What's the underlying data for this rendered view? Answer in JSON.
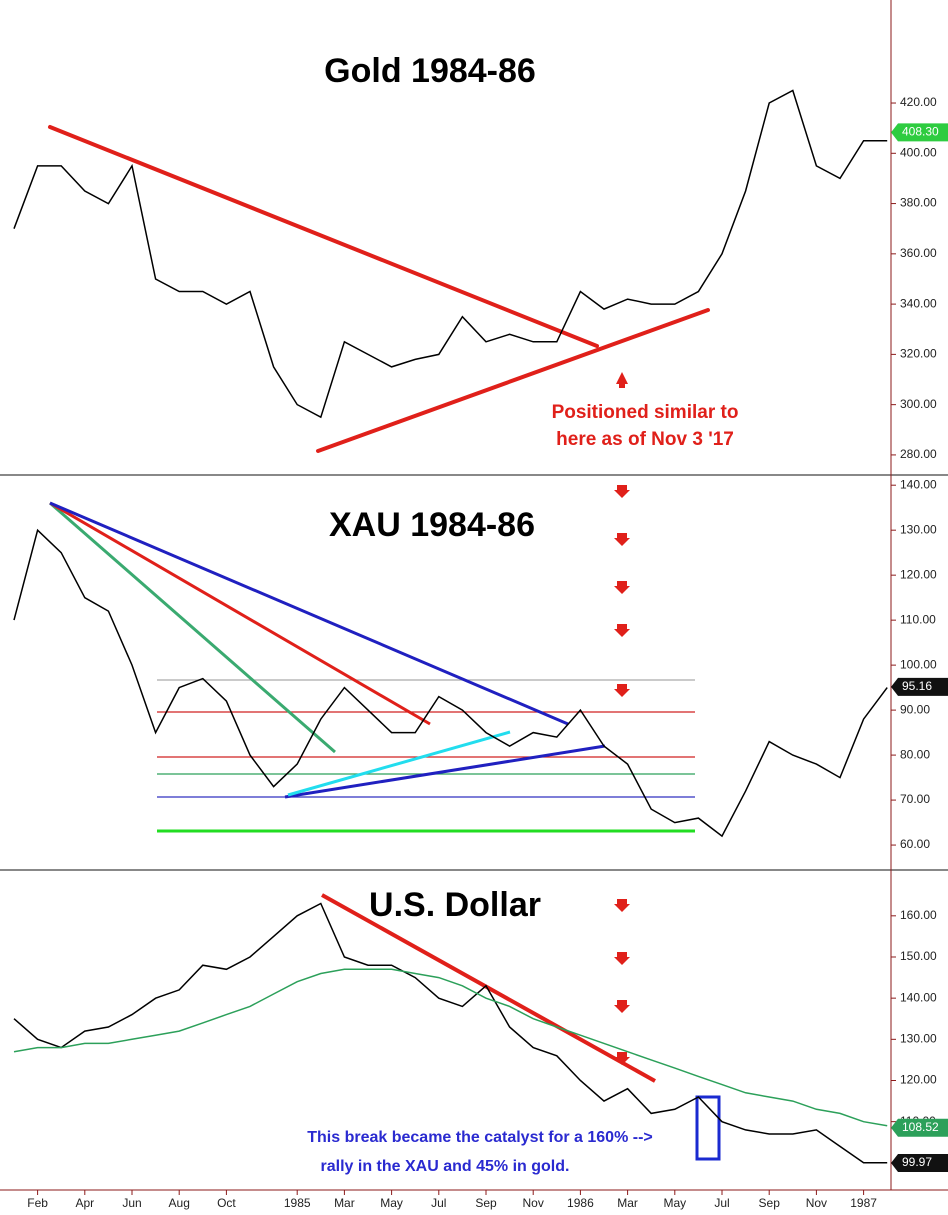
{
  "chart_data": [
    {
      "type": "line",
      "title": "Gold 1984-86",
      "color": "#000000",
      "values": [
        370,
        395,
        395,
        385,
        380,
        395,
        350,
        345,
        345,
        340,
        345,
        315,
        300,
        295,
        325,
        320,
        315,
        318,
        320,
        335,
        325,
        328,
        325,
        325,
        345,
        338,
        342,
        340,
        340,
        345,
        360,
        385,
        420,
        425,
        395,
        390,
        405,
        405
      ],
      "ylim": [
        274,
        459
      ],
      "yticks": [
        {
          "value": 280,
          "label": "280.00"
        },
        {
          "value": 300,
          "label": "300.00"
        },
        {
          "value": 320,
          "label": "320.00"
        },
        {
          "value": 340,
          "label": "340.00"
        },
        {
          "value": 360,
          "label": "360.00"
        },
        {
          "value": 380,
          "label": "380.00"
        },
        {
          "value": 400,
          "label": "400.00"
        },
        {
          "value": 420,
          "label": "420.00"
        }
      ],
      "end_labels": [
        {
          "value": 408.3,
          "label": "408.30",
          "color": "#2ecc40"
        }
      ],
      "annotations": [
        {
          "text": "Positioned similar to",
          "color": "#e0201a"
        },
        {
          "text": "here as of Nov 3 '17",
          "color": "#e0201a"
        }
      ]
    },
    {
      "type": "line",
      "title": "XAU 1984-86",
      "color": "#000000",
      "values": [
        110,
        130,
        125,
        115,
        112,
        100,
        85,
        95,
        97,
        92,
        80,
        73,
        78,
        88,
        95,
        90,
        85,
        85,
        93,
        90,
        85,
        82,
        85,
        84,
        90,
        82,
        78,
        68,
        65,
        66,
        62,
        72,
        83,
        80,
        78,
        75,
        88,
        95
      ],
      "ylim": [
        54.9,
        141.6
      ],
      "yticks": [
        {
          "value": 60,
          "label": "60.00"
        },
        {
          "value": 70,
          "label": "70.00"
        },
        {
          "value": 80,
          "label": "80.00"
        },
        {
          "value": 90,
          "label": "90.00"
        },
        {
          "value": 100,
          "label": "100.00"
        },
        {
          "value": 110,
          "label": "110.00"
        },
        {
          "value": 120,
          "label": "120.00"
        },
        {
          "value": 130,
          "label": "130.00"
        },
        {
          "value": 140,
          "label": "140.00"
        }
      ],
      "end_labels": [
        {
          "value": 95.16,
          "label": "95.16",
          "color": "#111111"
        }
      ]
    },
    {
      "type": "line",
      "title": "U.S. Dollar",
      "categories": [
        null,
        "Feb",
        null,
        "Apr",
        null,
        "Jun",
        null,
        "Aug",
        null,
        "Oct",
        null,
        null,
        "1985",
        null,
        "Mar",
        null,
        "May",
        null,
        "Jul",
        null,
        "Sep",
        null,
        "Nov",
        null,
        "1986",
        null,
        "Mar",
        null,
        "May",
        null,
        "Jul",
        null,
        "Sep",
        null,
        "Nov",
        null,
        "1987",
        null
      ],
      "series": [
        {
          "color": "#000000",
          "values": [
            135,
            130,
            128,
            132,
            133,
            136,
            140,
            142,
            148,
            147,
            150,
            155,
            160,
            163,
            150,
            148,
            148,
            145,
            140,
            138,
            143,
            133,
            128,
            126,
            120,
            115,
            118,
            112,
            113,
            116,
            110,
            108,
            107,
            107,
            108,
            104,
            100,
            100
          ]
        },
        {
          "color": "#2ca05a",
          "values": [
            127,
            128,
            128,
            129,
            129,
            130,
            131,
            132,
            134,
            136,
            138,
            141,
            144,
            146,
            147,
            147,
            147,
            146,
            145,
            143,
            140,
            138,
            135,
            133,
            131,
            129,
            127,
            125,
            123,
            121,
            119,
            117,
            116,
            115,
            113,
            112,
            110,
            109
          ]
        }
      ],
      "ylim": [
        93.4,
        170.4
      ],
      "yticks": [
        {
          "value": 110,
          "label": "110.00"
        },
        {
          "value": 120,
          "label": "120.00"
        },
        {
          "value": 130,
          "label": "130.00"
        },
        {
          "value": 140,
          "label": "140.00"
        },
        {
          "value": 150,
          "label": "150.00"
        },
        {
          "value": 160,
          "label": "160.00"
        }
      ],
      "end_labels": [
        {
          "value": 108.52,
          "label": "108.52",
          "color": "#2ca05a"
        },
        {
          "value": 99.97,
          "label": "99.97",
          "color": "#111111"
        }
      ],
      "annotations": [
        {
          "text": "This break became the catalyst for a 160%  -->",
          "color": "#2a2ad0"
        },
        {
          "text": "rally in the XAU and 45% in gold.",
          "color": "#2a2ad0"
        }
      ]
    }
  ]
}
